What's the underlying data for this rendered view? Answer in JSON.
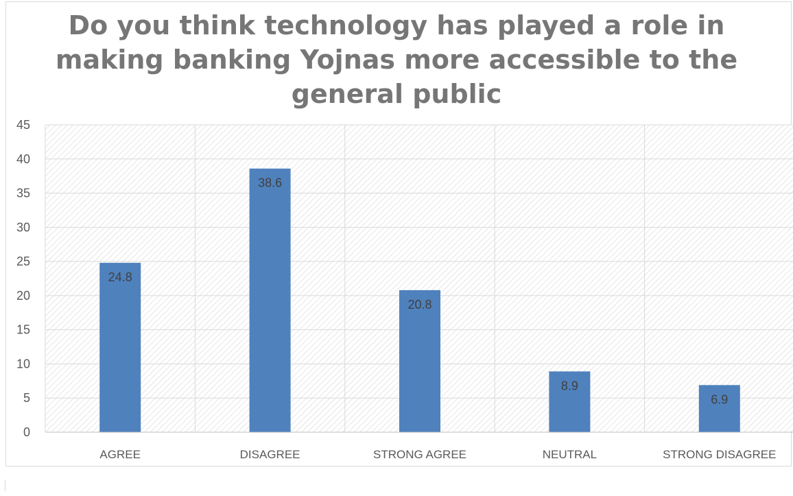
{
  "chart_data": {
    "type": "bar",
    "title_lines": [
      "Do you think technology has played a role in",
      "making banking Yojnas more accessible to the",
      "general public"
    ],
    "title": "Do you think technology has played a role in making banking Yojnas more accessible to the general public",
    "xlabel": "",
    "ylabel": "",
    "categories": [
      "AGREE",
      "DISAGREE",
      "STRONG AGREE",
      "NEUTRAL",
      "STRONG DISAGREE"
    ],
    "values": [
      24.8,
      38.6,
      20.8,
      8.9,
      6.9
    ],
    "data_labels": [
      "24.8",
      "38.6",
      "20.8",
      "8.9",
      "6.9"
    ],
    "ylim": [
      0,
      45
    ],
    "yticks": [
      "0",
      "5",
      "10",
      "15",
      "20",
      "25",
      "30",
      "35",
      "40",
      "45"
    ],
    "grid": true,
    "legend": "none",
    "bar_color": "#4f81bd",
    "background_pattern": "diagonal-hatch"
  }
}
